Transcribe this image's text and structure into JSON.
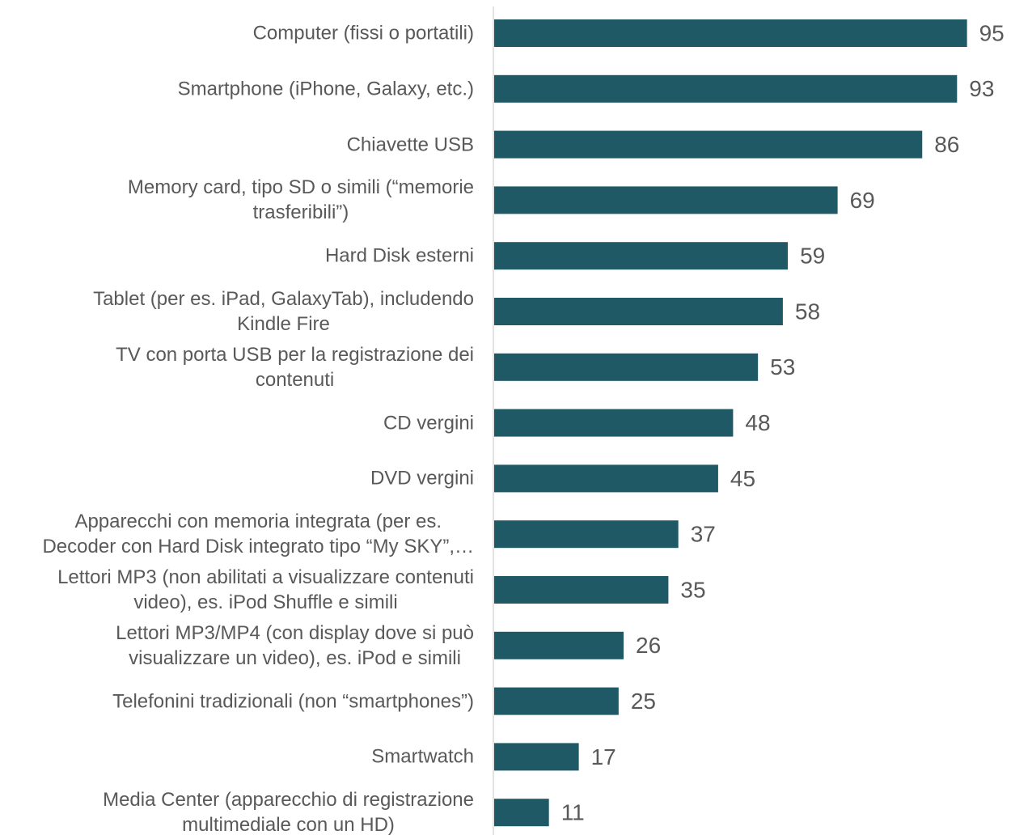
{
  "chart_data": {
    "type": "bar",
    "orientation": "horizontal",
    "categories": [
      "Computer (fissi o portatili)",
      "Smartphone (iPhone, Galaxy, etc.)",
      "Chiavette USB",
      "Memory card, tipo SD o simili (“memorie\ntrasferibili”)",
      "Hard Disk esterni",
      "Tablet (per es. iPad, GalaxyTab), includendo\nKindle Fire",
      "TV con porta USB per la registrazione dei\ncontenuti",
      "CD vergini",
      "DVD vergini",
      "Apparecchi con memoria integrata (per es.\nDecoder con Hard Disk integrato tipo “My SKY”,…",
      "Lettori MP3 (non abilitati a visualizzare contenuti\nvideo), es. iPod Shuffle e simili",
      "Lettori MP3/MP4 (con display dove si può\nvisualizzare un video), es. iPod e simili",
      "Telefonini tradizionali (non “smartphones”)",
      "Smartwatch",
      "Media Center (apparecchio di registrazione\nmultimediale con un HD)"
    ],
    "values": [
      95,
      93,
      86,
      69,
      59,
      58,
      53,
      48,
      45,
      37,
      35,
      26,
      25,
      17,
      11
    ],
    "color": "#1f5966",
    "xlim": [
      0,
      104
    ]
  }
}
